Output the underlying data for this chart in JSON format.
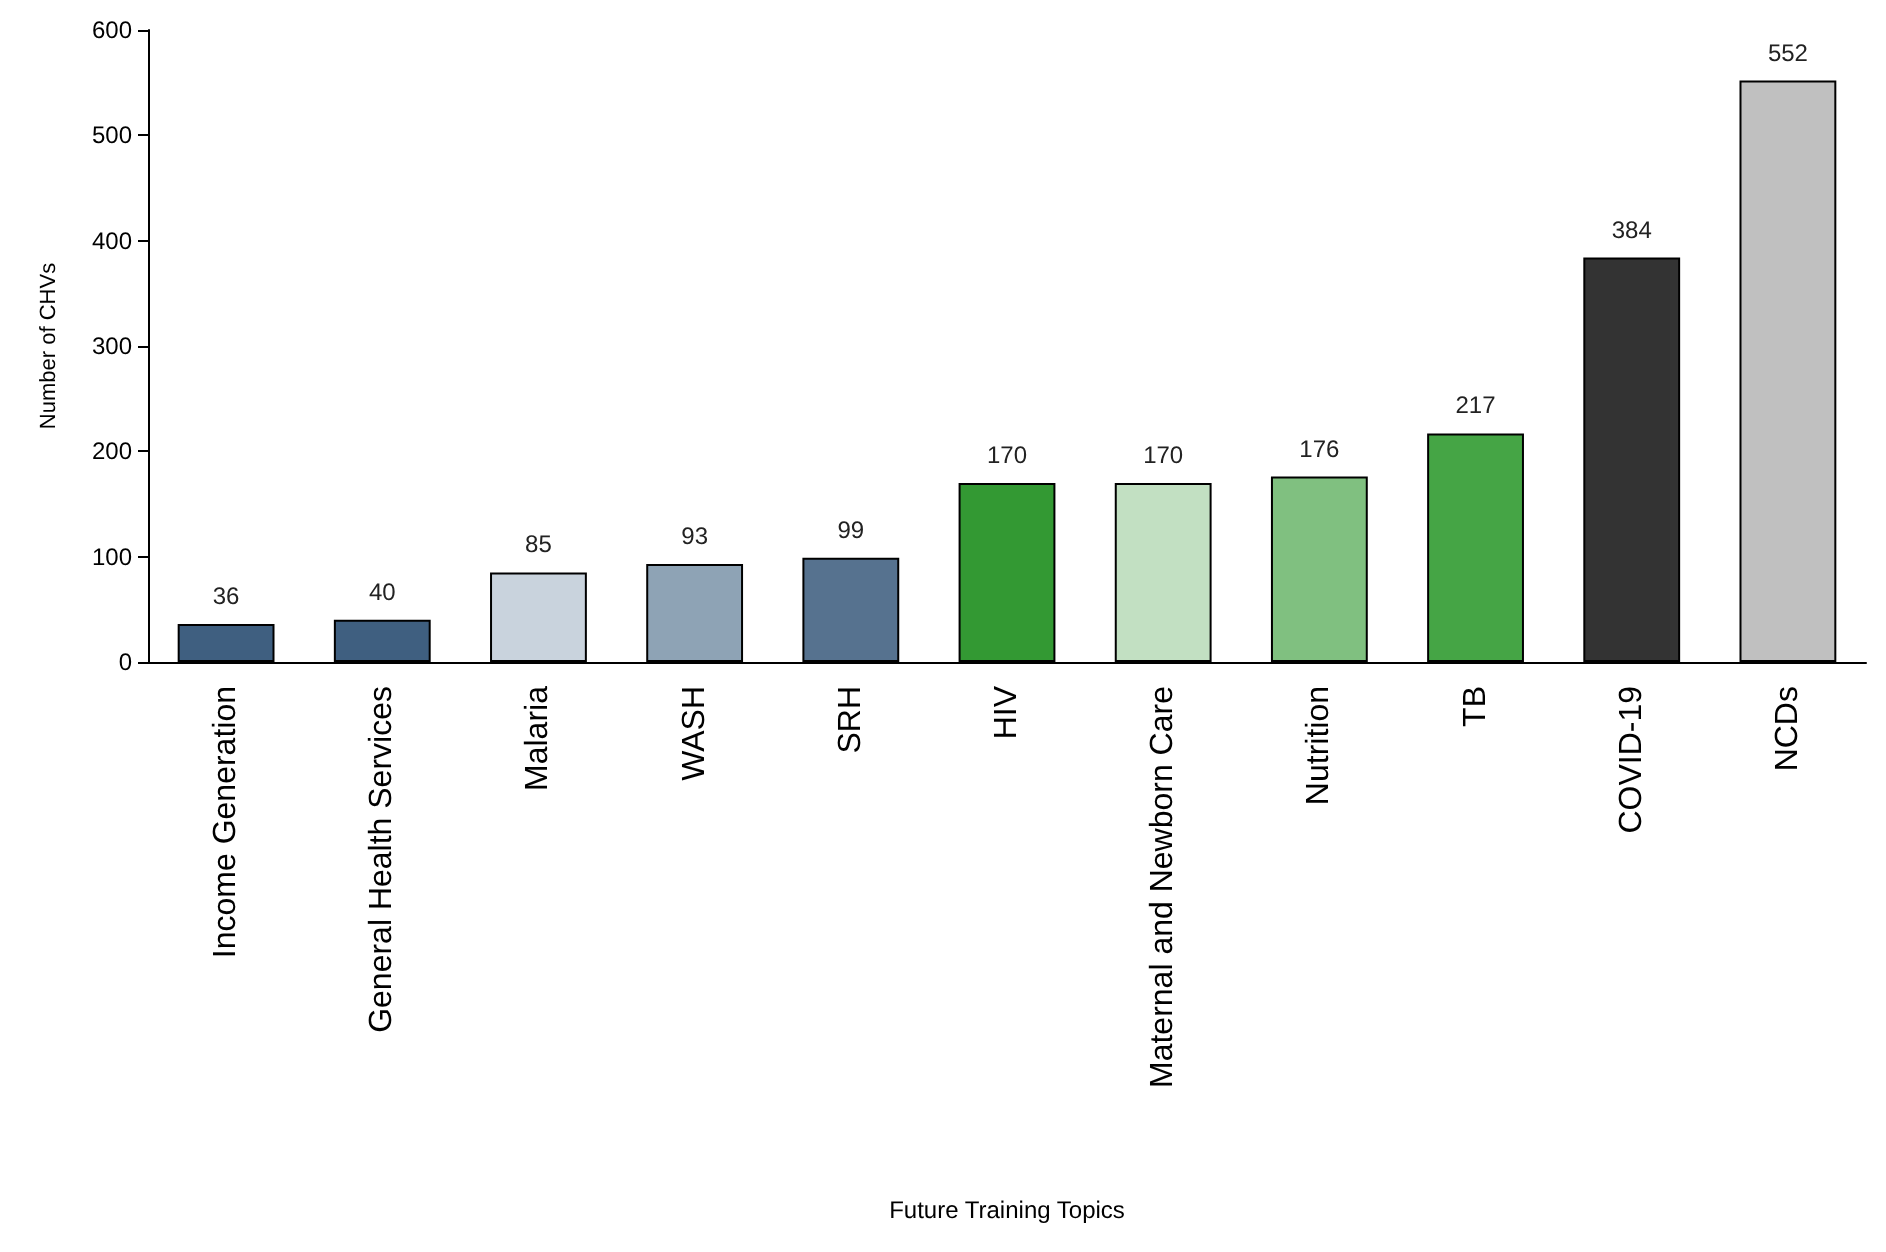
{
  "chart_data": {
    "type": "bar",
    "xlabel": "Future Training Topics",
    "ylabel": "Number of CHVs",
    "categories": [
      "Income Generation",
      "General Health Services",
      "Malaria",
      "WASH",
      "SRH",
      "HIV",
      "Maternal and Newborn Care",
      "Nutrition",
      "TB",
      "COVID-19",
      "NCDs"
    ],
    "values": [
      36,
      40,
      85,
      93,
      99,
      170,
      170,
      176,
      217,
      384,
      552
    ],
    "colors": [
      "#3f5f80",
      "#3f5f80",
      "#c9d3dd",
      "#8ea3b5",
      "#56728f",
      "#339933",
      "#c2e0c2",
      "#80c080",
      "#45a545",
      "#333333",
      "#c0c0c0"
    ],
    "ylim": [
      0,
      600
    ],
    "yticks": [
      0,
      100,
      200,
      300,
      400,
      500,
      600
    ],
    "grid": false,
    "data_labels": true
  }
}
